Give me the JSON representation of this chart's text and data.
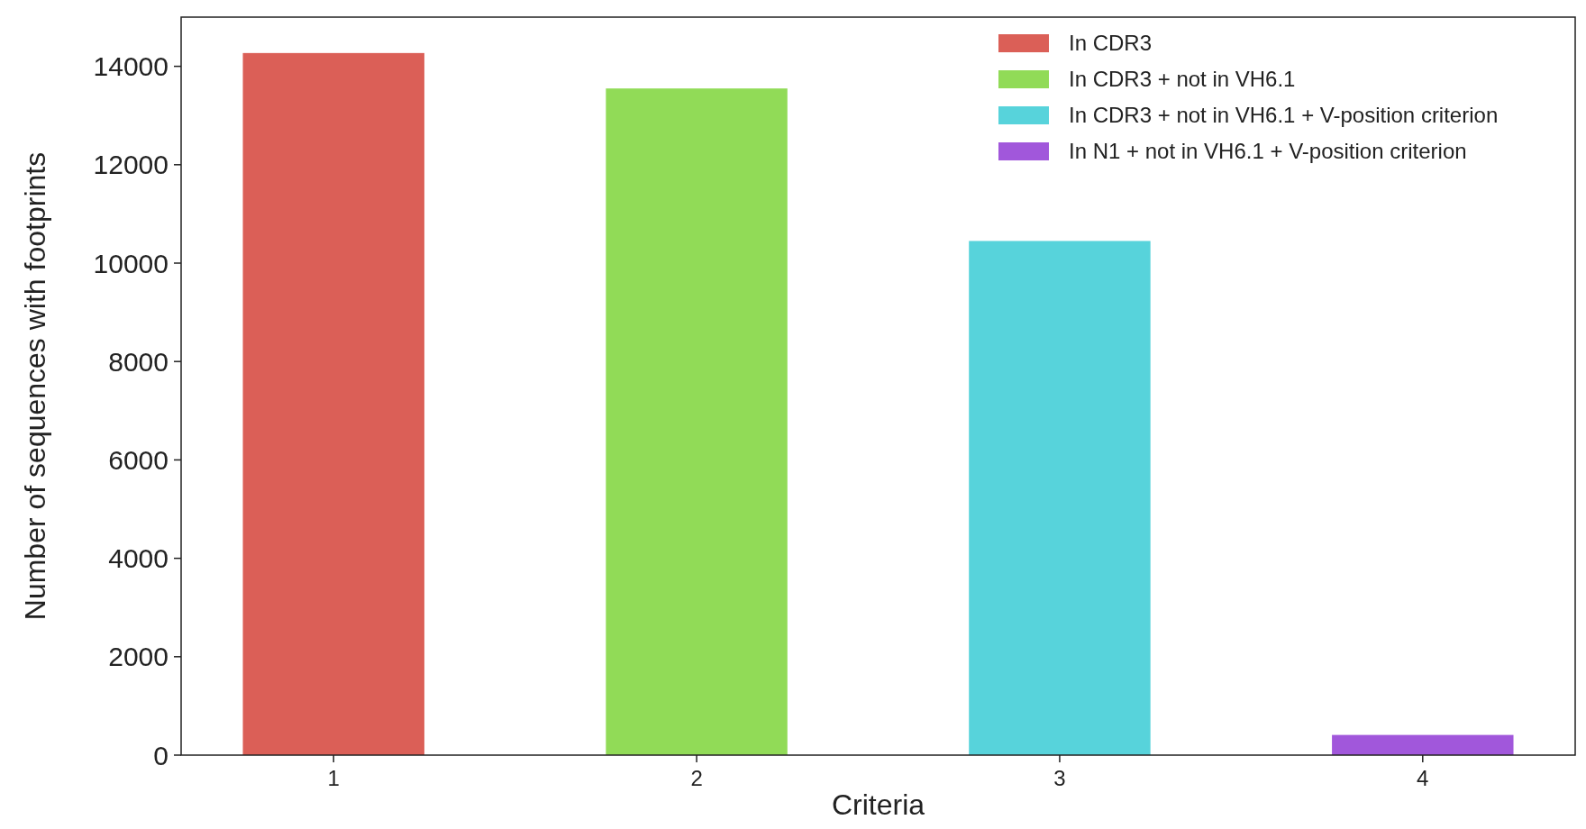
{
  "chart_data": {
    "type": "bar",
    "xlabel": "Criteria",
    "ylabel": "Number of sequences with footprints",
    "categories": [
      "1",
      "2",
      "3",
      "4"
    ],
    "series": [
      {
        "name": "In CDR3",
        "color": "#db5f57",
        "values": [
          14270,
          null,
          null,
          null
        ]
      },
      {
        "name": "In CDR3 + not in VH6.1",
        "color": "#91db57",
        "values": [
          null,
          13550,
          null,
          null
        ]
      },
      {
        "name": "In CDR3 + not in VH6.1 + V-position criterion",
        "color": "#57d3db",
        "values": [
          null,
          null,
          10450,
          null
        ]
      },
      {
        "name": "In N1 + not in VH6.1 + V-position criterion",
        "color": "#a157db",
        "values": [
          null,
          null,
          null,
          410
        ]
      }
    ],
    "ylim": [
      0,
      15000
    ],
    "yticks": [
      0,
      2000,
      4000,
      6000,
      8000,
      10000,
      12000,
      14000
    ],
    "grid": false,
    "legend": "top right"
  }
}
